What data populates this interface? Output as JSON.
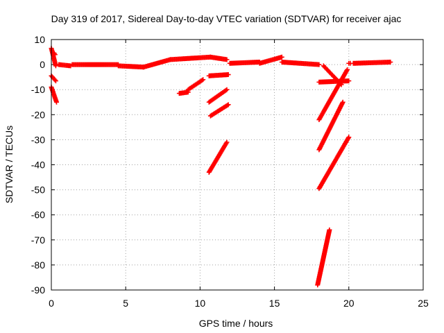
{
  "chart_data": {
    "type": "scatter",
    "title": "Day 319 of 2017, Sidereal Day-to-day VTEC variation (SDTVAR) for receiver ajac",
    "xlabel": "GPS time / hours",
    "ylabel": "SDTVAR / TECUs",
    "xlim": [
      0,
      25
    ],
    "ylim": [
      -90,
      10
    ],
    "xticks": [
      0,
      5,
      10,
      15,
      20,
      25
    ],
    "yticks": [
      10,
      0,
      -10,
      -20,
      -30,
      -40,
      -50,
      -60,
      -70,
      -80,
      -90
    ],
    "grid": true,
    "marker": "plus",
    "color": "#ff0000",
    "segments": [
      {
        "x": [
          0.0,
          0.3
        ],
        "y": [
          6.5,
          -0.5
        ]
      },
      {
        "x": [
          0.2,
          0.25
        ],
        "y": [
          4.5,
          4.0
        ]
      },
      {
        "x": [
          0.0,
          0.3
        ],
        "y": [
          -4.5,
          -6.5
        ]
      },
      {
        "x": [
          0.0,
          0.35
        ],
        "y": [
          -9.0,
          -15.0
        ]
      },
      {
        "x": [
          0.5,
          1.3
        ],
        "y": [
          0.0,
          -0.5
        ]
      },
      {
        "x": [
          1.4,
          4.5
        ],
        "y": [
          0.0,
          0.0
        ]
      },
      {
        "x": [
          4.5,
          6.2
        ],
        "y": [
          -0.5,
          -1.0
        ]
      },
      {
        "x": [
          6.2,
          8.0
        ],
        "y": [
          -1.0,
          2.0
        ]
      },
      {
        "x": [
          8.0,
          10.7
        ],
        "y": [
          2.0,
          3.0
        ]
      },
      {
        "x": [
          10.7,
          11.8
        ],
        "y": [
          3.0,
          2.0
        ]
      },
      {
        "x": [
          12.0,
          14.0
        ],
        "y": [
          0.5,
          1.0
        ]
      },
      {
        "x": [
          14.0,
          15.5
        ],
        "y": [
          0.5,
          3.0
        ]
      },
      {
        "x": [
          15.5,
          18.0
        ],
        "y": [
          1.0,
          0.0
        ]
      },
      {
        "x": [
          8.6,
          9.2
        ],
        "y": [
          -11.5,
          -11.0
        ]
      },
      {
        "x": [
          9.2,
          10.2
        ],
        "y": [
          -10.0,
          -6.0
        ]
      },
      {
        "x": [
          10.6,
          11.9
        ],
        "y": [
          -4.5,
          -4.0
        ]
      },
      {
        "x": [
          10.6,
          11.8
        ],
        "y": [
          -15.0,
          -10.0
        ]
      },
      {
        "x": [
          10.7,
          11.9
        ],
        "y": [
          -20.5,
          -16.0
        ]
      },
      {
        "x": [
          10.6,
          11.8
        ],
        "y": [
          -43.0,
          -31.0
        ]
      },
      {
        "x": [
          18.3,
          19.5
        ],
        "y": [
          -0.5,
          -8.0
        ]
      },
      {
        "x": [
          18.0,
          20.0
        ],
        "y": [
          -7.0,
          -6.5
        ]
      },
      {
        "x": [
          18.0,
          19.9
        ],
        "y": [
          -22.0,
          -2.0
        ]
      },
      {
        "x": [
          18.0,
          19.6
        ],
        "y": [
          -34.0,
          -15.0
        ]
      },
      {
        "x": [
          18.0,
          20.0
        ],
        "y": [
          -49.5,
          -29.0
        ]
      },
      {
        "x": [
          17.9,
          18.7
        ],
        "y": [
          -88.0,
          -66.0
        ]
      },
      {
        "x": [
          20.0,
          20.1
        ],
        "y": [
          0.5,
          0.5
        ]
      },
      {
        "x": [
          20.3,
          22.8
        ],
        "y": [
          0.5,
          1.0
        ]
      }
    ]
  }
}
